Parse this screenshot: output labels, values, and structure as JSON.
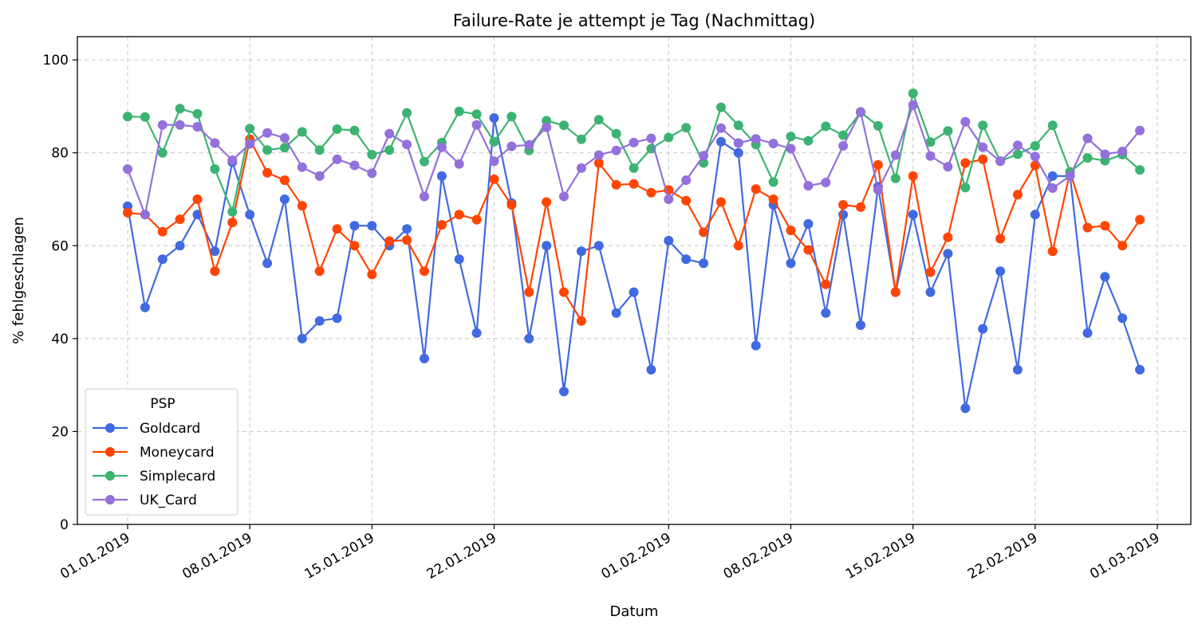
{
  "chart_data": {
    "type": "line",
    "title": "Failure-Rate je attempt je Tag (Nachmittag)",
    "xlabel": "Datum",
    "ylabel": "% fehlgeschlagen",
    "ylim": [
      0,
      105
    ],
    "yticks": [
      0,
      20,
      40,
      60,
      80,
      100
    ],
    "xticks": [
      "01.01.2019",
      "08.01.2019",
      "15.01.2019",
      "22.01.2019",
      "01.02.2019",
      "08.02.2019",
      "15.02.2019",
      "22.02.2019",
      "01.03.2019"
    ],
    "grid": true,
    "legend": {
      "title": "PSP",
      "placement": "lower-left"
    },
    "x": [
      "01.01.2019",
      "02.01.2019",
      "03.01.2019",
      "04.01.2019",
      "05.01.2019",
      "06.01.2019",
      "07.01.2019",
      "08.01.2019",
      "09.01.2019",
      "10.01.2019",
      "11.01.2019",
      "12.01.2019",
      "13.01.2019",
      "14.01.2019",
      "15.01.2019",
      "16.01.2019",
      "17.01.2019",
      "18.01.2019",
      "19.01.2019",
      "20.01.2019",
      "21.01.2019",
      "22.01.2019",
      "23.01.2019",
      "24.01.2019",
      "25.01.2019",
      "26.01.2019",
      "27.01.2019",
      "28.01.2019",
      "29.01.2019",
      "30.01.2019",
      "31.01.2019",
      "01.02.2019",
      "02.02.2019",
      "03.02.2019",
      "04.02.2019",
      "05.02.2019",
      "06.02.2019",
      "07.02.2019",
      "08.02.2019",
      "09.02.2019",
      "10.02.2019",
      "11.02.2019",
      "12.02.2019",
      "13.02.2019",
      "14.02.2019",
      "15.02.2019",
      "16.02.2019",
      "17.02.2019",
      "18.02.2019",
      "19.02.2019",
      "20.02.2019",
      "21.02.2019",
      "22.02.2019",
      "23.02.2019",
      "24.02.2019",
      "25.02.2019",
      "26.02.2019",
      "27.02.2019",
      "28.02.2019"
    ],
    "series": [
      {
        "name": "Goldcard",
        "color": "#4169e1",
        "values": [
          68.5,
          46.7,
          57.1,
          60.0,
          66.7,
          58.8,
          78.0,
          66.7,
          56.2,
          70.0,
          40.0,
          43.8,
          44.4,
          64.3,
          64.3,
          60.0,
          63.6,
          35.7,
          75.0,
          57.1,
          41.2,
          87.5,
          69.2,
          40.0,
          60.0,
          28.6,
          58.8,
          60.0,
          45.5,
          50.0,
          33.3,
          61.1,
          57.1,
          56.2,
          82.4,
          80.0,
          38.5,
          68.8,
          56.2,
          64.7,
          45.5,
          66.7,
          42.9,
          72.7,
          50.0,
          66.7,
          50.0,
          58.3,
          25.0,
          42.1,
          54.5,
          33.3,
          66.7,
          75.0,
          75.0,
          41.2,
          53.3,
          44.4,
          33.3
        ]
      },
      {
        "name": "Moneycard",
        "color": "#ff4500",
        "values": [
          67.1,
          66.7,
          63.0,
          65.7,
          70.0,
          54.5,
          65.0,
          82.9,
          75.7,
          74.1,
          68.6,
          54.5,
          63.6,
          60.0,
          53.8,
          61.0,
          61.2,
          54.5,
          64.5,
          66.7,
          65.6,
          74.3,
          68.8,
          50.0,
          69.4,
          50.0,
          43.8,
          77.8,
          73.1,
          73.3,
          71.4,
          72.0,
          69.7,
          62.9,
          69.4,
          60.0,
          72.2,
          70.0,
          63.3,
          59.1,
          51.7,
          68.8,
          68.3,
          77.4,
          50.0,
          75.0,
          54.3,
          61.8,
          77.8,
          78.6,
          61.5,
          71.0,
          77.3,
          58.8,
          75.9,
          63.9,
          64.3,
          60.0,
          65.6
        ]
      },
      {
        "name": "Simplecard",
        "color": "#3cb371",
        "values": [
          87.8,
          87.7,
          80.0,
          89.5,
          88.4,
          76.5,
          67.3,
          85.2,
          80.6,
          81.1,
          84.5,
          80.6,
          85.1,
          84.8,
          79.6,
          80.6,
          88.6,
          78.1,
          82.2,
          88.9,
          88.3,
          82.4,
          87.8,
          80.5,
          86.9,
          85.9,
          82.9,
          87.1,
          84.1,
          76.7,
          80.9,
          83.3,
          85.4,
          77.8,
          89.8,
          85.9,
          81.8,
          73.7,
          83.5,
          82.6,
          85.7,
          83.8,
          88.7,
          85.8,
          74.5,
          92.8,
          82.3,
          84.7,
          72.5,
          85.9,
          78.2,
          79.7,
          81.5,
          85.9,
          75.9,
          78.9,
          78.3,
          79.6,
          76.3
        ]
      },
      {
        "name": "UK_Card",
        "color": "#9370db",
        "values": [
          76.5,
          66.7,
          86.0,
          86.0,
          85.6,
          82.1,
          78.4,
          81.9,
          84.3,
          83.2,
          76.9,
          75.0,
          78.6,
          77.3,
          75.6,
          84.1,
          81.8,
          70.6,
          81.2,
          77.6,
          86.0,
          78.2,
          81.4,
          81.7,
          85.5,
          70.6,
          76.7,
          79.5,
          80.5,
          82.2,
          83.1,
          70.0,
          74.1,
          79.4,
          85.3,
          82.1,
          83.0,
          82.0,
          80.9,
          72.9,
          73.6,
          81.5,
          88.8,
          72.0,
          79.5,
          90.3,
          79.3,
          77.0,
          86.7,
          81.2,
          78.2,
          81.6,
          79.2,
          72.4,
          75.0,
          83.1,
          79.7,
          80.3,
          84.8
        ]
      }
    ]
  }
}
